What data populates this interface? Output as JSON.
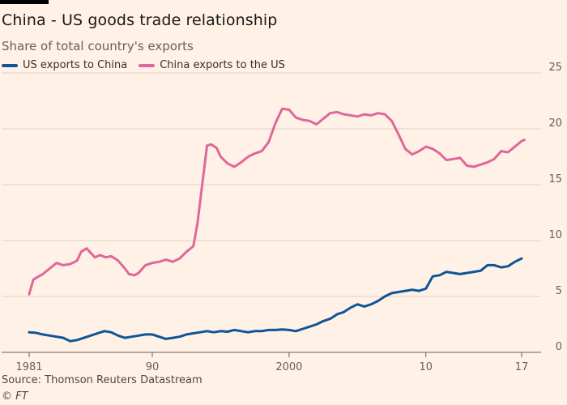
{
  "title": "China - US goods trade relationship",
  "subtitle": "Share of total country's exports",
  "source": "Source: Thomson Reuters Datastream",
  "copyright": "© FT",
  "colors": {
    "background": "#fff1e5",
    "grid": "#ddd2c6",
    "us_to_china": "#0f5499",
    "china_to_us": "#e0679a"
  },
  "chart_data": {
    "type": "line",
    "title": "China - US goods trade relationship",
    "subtitle": "Share of total country's exports",
    "xlabel": "",
    "ylabel": "",
    "xlim": [
      1981,
      2017.4
    ],
    "ylim": [
      0,
      25
    ],
    "yticks": [
      0,
      5,
      10,
      15,
      20,
      25
    ],
    "xticks": [
      {
        "value": 1981,
        "label": "1981"
      },
      {
        "value": 1990,
        "label": "90"
      },
      {
        "value": 2000,
        "label": "2000"
      },
      {
        "value": 2010,
        "label": "10"
      },
      {
        "value": 2017,
        "label": "17"
      }
    ],
    "grid": true,
    "y_axis_position": "right",
    "legend_position": "top-left",
    "series": [
      {
        "name": "US exports to China",
        "color": "#0f5499",
        "points": [
          [
            1981.0,
            1.8
          ],
          [
            1981.5,
            1.75
          ],
          [
            1982.0,
            1.6
          ],
          [
            1982.5,
            1.5
          ],
          [
            1983.0,
            1.4
          ],
          [
            1983.5,
            1.3
          ],
          [
            1984.0,
            1.0
          ],
          [
            1984.5,
            1.1
          ],
          [
            1985.0,
            1.3
          ],
          [
            1985.5,
            1.5
          ],
          [
            1986.0,
            1.7
          ],
          [
            1986.5,
            1.9
          ],
          [
            1987.0,
            1.8
          ],
          [
            1987.5,
            1.5
          ],
          [
            1988.0,
            1.3
          ],
          [
            1988.5,
            1.4
          ],
          [
            1989.0,
            1.5
          ],
          [
            1989.5,
            1.6
          ],
          [
            1990.0,
            1.6
          ],
          [
            1990.5,
            1.4
          ],
          [
            1991.0,
            1.2
          ],
          [
            1991.5,
            1.3
          ],
          [
            1992.0,
            1.4
          ],
          [
            1992.5,
            1.6
          ],
          [
            1993.0,
            1.7
          ],
          [
            1993.5,
            1.8
          ],
          [
            1994.0,
            1.9
          ],
          [
            1994.5,
            1.8
          ],
          [
            1995.0,
            1.9
          ],
          [
            1995.5,
            1.85
          ],
          [
            1996.0,
            2.0
          ],
          [
            1996.5,
            1.9
          ],
          [
            1997.0,
            1.8
          ],
          [
            1997.5,
            1.9
          ],
          [
            1998.0,
            1.9
          ],
          [
            1998.5,
            2.0
          ],
          [
            1999.0,
            2.0
          ],
          [
            1999.5,
            2.05
          ],
          [
            2000.0,
            2.0
          ],
          [
            2000.5,
            1.9
          ],
          [
            2001.0,
            2.1
          ],
          [
            2001.5,
            2.3
          ],
          [
            2002.0,
            2.5
          ],
          [
            2002.5,
            2.8
          ],
          [
            2003.0,
            3.0
          ],
          [
            2003.5,
            3.4
          ],
          [
            2004.0,
            3.6
          ],
          [
            2004.5,
            4.0
          ],
          [
            2005.0,
            4.3
          ],
          [
            2005.5,
            4.1
          ],
          [
            2006.0,
            4.3
          ],
          [
            2006.5,
            4.6
          ],
          [
            2007.0,
            5.0
          ],
          [
            2007.5,
            5.3
          ],
          [
            2008.0,
            5.4
          ],
          [
            2008.5,
            5.5
          ],
          [
            2009.0,
            5.6
          ],
          [
            2009.5,
            5.5
          ],
          [
            2010.0,
            5.7
          ],
          [
            2010.5,
            6.8
          ],
          [
            2011.0,
            6.9
          ],
          [
            2011.5,
            7.2
          ],
          [
            2012.0,
            7.1
          ],
          [
            2012.5,
            7.0
          ],
          [
            2013.0,
            7.1
          ],
          [
            2013.5,
            7.2
          ],
          [
            2014.0,
            7.3
          ],
          [
            2014.5,
            7.8
          ],
          [
            2015.0,
            7.8
          ],
          [
            2015.5,
            7.6
          ],
          [
            2016.0,
            7.7
          ],
          [
            2016.5,
            8.1
          ],
          [
            2017.0,
            8.4
          ]
        ]
      },
      {
        "name": "China exports to the US",
        "color": "#e0679a",
        "points": [
          [
            1981.0,
            5.2
          ],
          [
            1981.3,
            6.5
          ],
          [
            1981.7,
            6.8
          ],
          [
            1982.0,
            7.0
          ],
          [
            1982.5,
            7.5
          ],
          [
            1983.0,
            8.0
          ],
          [
            1983.5,
            7.8
          ],
          [
            1984.0,
            7.9
          ],
          [
            1984.5,
            8.2
          ],
          [
            1984.8,
            9.0
          ],
          [
            1985.2,
            9.3
          ],
          [
            1985.5,
            8.9
          ],
          [
            1985.8,
            8.5
          ],
          [
            1986.2,
            8.7
          ],
          [
            1986.6,
            8.5
          ],
          [
            1987.0,
            8.6
          ],
          [
            1987.5,
            8.2
          ],
          [
            1988.0,
            7.5
          ],
          [
            1988.3,
            7.0
          ],
          [
            1988.7,
            6.9
          ],
          [
            1989.0,
            7.1
          ],
          [
            1989.5,
            7.8
          ],
          [
            1990.0,
            8.0
          ],
          [
            1990.5,
            8.1
          ],
          [
            1991.0,
            8.3
          ],
          [
            1991.5,
            8.1
          ],
          [
            1992.0,
            8.4
          ],
          [
            1992.5,
            9.0
          ],
          [
            1993.0,
            9.5
          ],
          [
            1993.3,
            11.5
          ],
          [
            1993.6,
            14.5
          ],
          [
            1993.8,
            16.5
          ],
          [
            1994.0,
            18.5
          ],
          [
            1994.3,
            18.6
          ],
          [
            1994.7,
            18.3
          ],
          [
            1995.0,
            17.5
          ],
          [
            1995.5,
            16.9
          ],
          [
            1996.0,
            16.6
          ],
          [
            1996.5,
            17.0
          ],
          [
            1997.0,
            17.5
          ],
          [
            1997.5,
            17.8
          ],
          [
            1998.0,
            18.0
          ],
          [
            1998.5,
            18.8
          ],
          [
            1999.0,
            20.5
          ],
          [
            1999.5,
            21.8
          ],
          [
            2000.0,
            21.7
          ],
          [
            2000.5,
            21.0
          ],
          [
            2001.0,
            20.8
          ],
          [
            2001.5,
            20.7
          ],
          [
            2002.0,
            20.4
          ],
          [
            2002.5,
            20.9
          ],
          [
            2003.0,
            21.4
          ],
          [
            2003.5,
            21.5
          ],
          [
            2004.0,
            21.3
          ],
          [
            2004.5,
            21.2
          ],
          [
            2005.0,
            21.1
          ],
          [
            2005.5,
            21.3
          ],
          [
            2006.0,
            21.2
          ],
          [
            2006.5,
            21.4
          ],
          [
            2007.0,
            21.3
          ],
          [
            2007.5,
            20.7
          ],
          [
            2008.0,
            19.5
          ],
          [
            2008.5,
            18.2
          ],
          [
            2009.0,
            17.7
          ],
          [
            2009.5,
            18.0
          ],
          [
            2010.0,
            18.4
          ],
          [
            2010.5,
            18.2
          ],
          [
            2011.0,
            17.8
          ],
          [
            2011.5,
            17.2
          ],
          [
            2012.0,
            17.3
          ],
          [
            2012.5,
            17.4
          ],
          [
            2013.0,
            16.7
          ],
          [
            2013.5,
            16.6
          ],
          [
            2014.0,
            16.8
          ],
          [
            2014.5,
            17.0
          ],
          [
            2015.0,
            17.3
          ],
          [
            2015.5,
            18.0
          ],
          [
            2016.0,
            17.9
          ],
          [
            2016.5,
            18.4
          ],
          [
            2017.0,
            18.9
          ],
          [
            2017.2,
            19.0
          ]
        ]
      }
    ]
  }
}
